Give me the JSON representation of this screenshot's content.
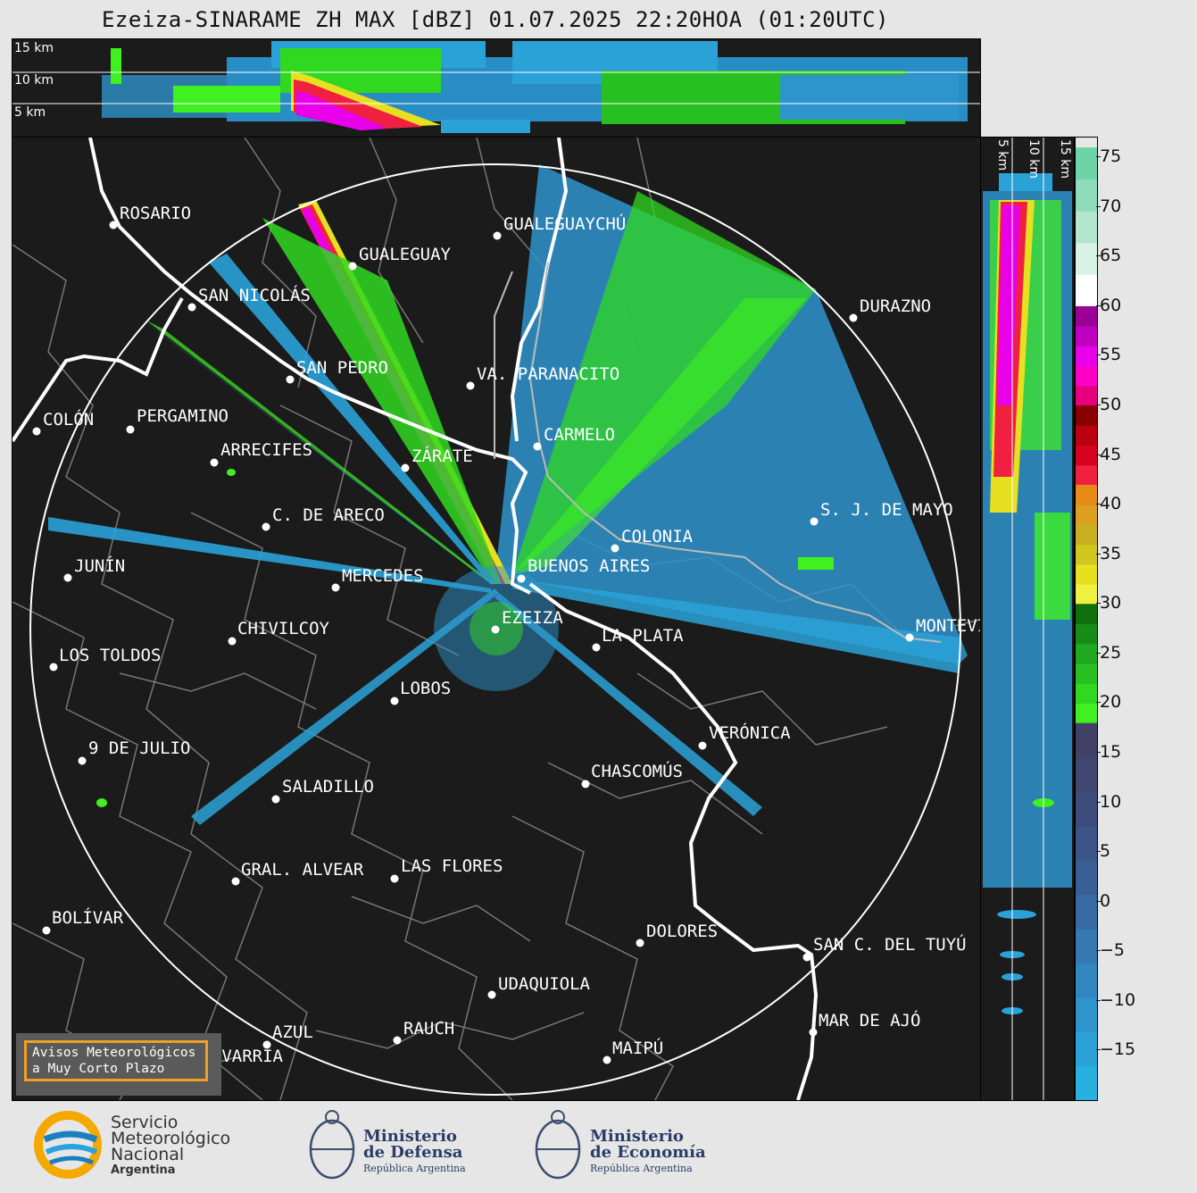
{
  "title": "Ezeiza-SINARAME ZH MAX [dBZ] 01.07.2025 22:20HOA (01:20UTC)",
  "height_labels": [
    "15 km",
    "10 km",
    "5 km"
  ],
  "colorbar": {
    "ticks": [
      "75",
      "70",
      "65",
      "60",
      "55",
      "50",
      "45",
      "40",
      "35",
      "30",
      "25",
      "20",
      "15",
      "10",
      "5",
      "0",
      "−5",
      "−10",
      "−15"
    ],
    "bands": [
      {
        "from": 60,
        "to": 76,
        "colors": [
          "#ffffff",
          "#d8f2e6",
          "#b2e6cf",
          "#8fdcbb",
          "#6fd3a8"
        ]
      },
      {
        "from": 50,
        "to": 60,
        "colors": [
          "#e6007e",
          "#ff00c8",
          "#e800e8",
          "#c000c0",
          "#9a0096"
        ]
      },
      {
        "from": 42,
        "to": 50,
        "colors": [
          "#f02040",
          "#d80020",
          "#b80010",
          "#8a0000"
        ]
      },
      {
        "from": 30,
        "to": 42,
        "colors": [
          "#f0f040",
          "#e6e020",
          "#d0c820",
          "#c8b020",
          "#dca020",
          "#e88a18"
        ]
      },
      {
        "from": 18,
        "to": 30,
        "colors": [
          "#40f020",
          "#30d820",
          "#28c020",
          "#20a820",
          "#188c18",
          "#107010"
        ]
      },
      {
        "from": -20,
        "to": 18,
        "colors": [
          "#28b0e0",
          "#2aa2d8",
          "#2e94cc",
          "#3286bf",
          "#3578b2",
          "#386aa4",
          "#3a5e96",
          "#3c5488",
          "#3e4c7c",
          "#404670",
          "#424066"
        ]
      }
    ]
  },
  "cities": [
    {
      "name": "ROSARIO",
      "label": "ROSARIO"
    },
    {
      "name": "GUALEGUAYCHU",
      "label": "GUALEGUAYCHÚ"
    },
    {
      "name": "GUALEGUAY",
      "label": "GUALEGUAY"
    },
    {
      "name": "SAN-NICOLAS",
      "label": "SAN NICOLÁS"
    },
    {
      "name": "DURAZNO",
      "label": "DURAZNO"
    },
    {
      "name": "SAN-PEDRO",
      "label": "SAN PEDRO"
    },
    {
      "name": "VA-PARANACITO",
      "label": "VA. PARANACITO"
    },
    {
      "name": "COLON",
      "label": "COLÓN"
    },
    {
      "name": "PERGAMINO",
      "label": "PERGAMINO"
    },
    {
      "name": "CARMELO",
      "label": "CARMELO"
    },
    {
      "name": "ARRECIFES",
      "label": "ARRECIFES"
    },
    {
      "name": "ZARATE",
      "label": "ZÁRATE"
    },
    {
      "name": "C-DE-ARECO",
      "label": "C. DE ARECO"
    },
    {
      "name": "S-J-DE-MAYO",
      "label": "S. J. DE MAYO"
    },
    {
      "name": "COLONIA",
      "label": "COLONIA"
    },
    {
      "name": "JUNIN",
      "label": "JUNÍN"
    },
    {
      "name": "BUENOS-AIRES",
      "label": "BUENOS AIRES"
    },
    {
      "name": "MERCEDES",
      "label": "MERCEDES"
    },
    {
      "name": "EZEIZA",
      "label": "EZEIZA"
    },
    {
      "name": "MONTEVIDEO",
      "label": "MONTEVIDEO"
    },
    {
      "name": "CHIVILCOY",
      "label": "CHIVILCOY"
    },
    {
      "name": "LA-PLATA",
      "label": "LA PLATA"
    },
    {
      "name": "LOS-TOLDOS",
      "label": "LOS TOLDOS"
    },
    {
      "name": "LOBOS",
      "label": "LOBOS"
    },
    {
      "name": "VERONICA",
      "label": "VERÓNICA"
    },
    {
      "name": "9-DE-JULIO",
      "label": "9 DE JULIO"
    },
    {
      "name": "CHASCOMUS",
      "label": "CHASCOMÚS"
    },
    {
      "name": "SALADILLO",
      "label": "SALADILLO"
    },
    {
      "name": "GRAL-ALVEAR",
      "label": "GRAL. ALVEAR"
    },
    {
      "name": "LAS-FLORES",
      "label": "LAS FLORES"
    },
    {
      "name": "BOLIVAR",
      "label": "BOLÍVAR"
    },
    {
      "name": "DOLORES",
      "label": "DOLORES"
    },
    {
      "name": "SAN-C-DEL-TUYU",
      "label": "SAN C. DEL TUYÚ"
    },
    {
      "name": "UDAQUIOLA",
      "label": "UDAQUIOLA"
    },
    {
      "name": "MAR-DE-AJO",
      "label": "MAR DE AJÓ"
    },
    {
      "name": "AZUL",
      "label": "AZUL"
    },
    {
      "name": "RAUCH",
      "label": "RAUCH"
    },
    {
      "name": "OLAVARRIA",
      "label": "OLAVARRÍA"
    },
    {
      "name": "MAIPU",
      "label": "MAIPÚ"
    }
  ],
  "avisos": {
    "line1": "Avisos Meteorológicos",
    "line2": "a Muy Corto Plazo"
  },
  "footer": {
    "smn": {
      "line1": "Servicio",
      "line2": "Meteorológico",
      "line3": "Nacional",
      "line4": "Argentina"
    },
    "defensa": {
      "line1": "Ministerio",
      "line2": "de Defensa",
      "line3": "República Argentina"
    },
    "economia": {
      "line1": "Ministerio",
      "line2": "de Economía",
      "line3": "República Argentina"
    }
  },
  "colors": {
    "background": "#1b1b1b",
    "range_ring": "#ffffff",
    "border_lines": "#7a7a7a",
    "coast": "#ffffff",
    "avisos_border": "#f0a020"
  }
}
